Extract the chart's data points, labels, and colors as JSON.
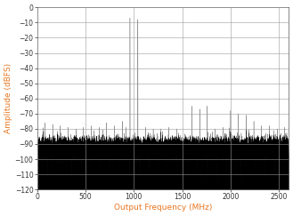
{
  "title": "",
  "xlabel": "Output Frequency (MHz)",
  "ylabel": "Amplitude (dBFS)",
  "xlim": [
    0,
    2600
  ],
  "ylim": [
    -120,
    0
  ],
  "yticks": [
    0,
    -10,
    -20,
    -30,
    -40,
    -50,
    -60,
    -70,
    -80,
    -90,
    -100,
    -110,
    -120
  ],
  "xticks": [
    0,
    500,
    1000,
    1500,
    2000,
    2500
  ],
  "noise_floor": -93,
  "noise_std": 3.5,
  "fs": 2600,
  "tone1_freq": 960,
  "tone2_freq": 1040,
  "tone1_amp": -7,
  "tone2_amp": -8,
  "label_color": "#E87722",
  "tick_color": "#333333",
  "signal_color": "#000000",
  "background_color": "#ffffff",
  "grid_color": "#999999",
  "spikes": [
    [
      80,
      -76
    ],
    [
      160,
      -77
    ],
    [
      240,
      -78
    ],
    [
      320,
      -79
    ],
    [
      400,
      -80
    ],
    [
      480,
      -79
    ],
    [
      560,
      -78
    ],
    [
      640,
      -79
    ],
    [
      720,
      -76
    ],
    [
      800,
      -78
    ],
    [
      880,
      -75
    ],
    [
      920,
      -79
    ],
    [
      1120,
      -79
    ],
    [
      1200,
      -80
    ],
    [
      1280,
      -80
    ],
    [
      1360,
      -79
    ],
    [
      1440,
      -80
    ],
    [
      1600,
      -65
    ],
    [
      1680,
      -67
    ],
    [
      1760,
      -65
    ],
    [
      1840,
      -80
    ],
    [
      1920,
      -79
    ],
    [
      2000,
      -68
    ],
    [
      2080,
      -70
    ],
    [
      2160,
      -71
    ],
    [
      2240,
      -75
    ],
    [
      2320,
      -78
    ],
    [
      2400,
      -78
    ],
    [
      2480,
      -80
    ],
    [
      2560,
      -79
    ]
  ]
}
